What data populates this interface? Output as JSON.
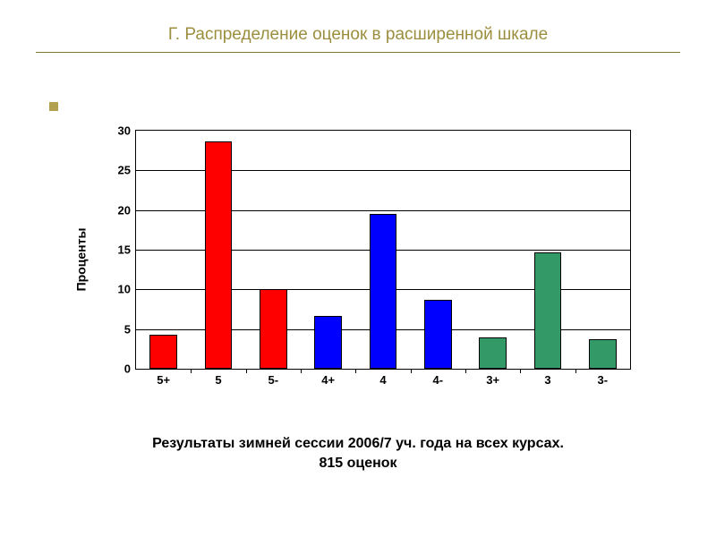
{
  "title": {
    "text": "Г. Распределение оценок в расширенной шкале",
    "color": "#9b8f3f",
    "fontsize": 19,
    "underline_color": "#807830"
  },
  "bullet": {
    "color": "#b0a050"
  },
  "chart": {
    "type": "bar",
    "ylabel": "Проценты",
    "label_fontsize": 14,
    "ylim": [
      0,
      30
    ],
    "ytick_step": 5,
    "yticks": [
      0,
      5,
      10,
      15,
      20,
      25,
      30
    ],
    "categories": [
      "5+",
      "5",
      "5-",
      "4+",
      "4",
      "4-",
      "3+",
      "3",
      "3-"
    ],
    "values": [
      4.3,
      28.6,
      10.0,
      6.6,
      19.5,
      8.7,
      4.0,
      14.7,
      3.7
    ],
    "bar_colors": [
      "#ff0000",
      "#ff0000",
      "#ff0000",
      "#0000ff",
      "#0000ff",
      "#0000ff",
      "#339966",
      "#339966",
      "#339966"
    ],
    "bar_width": 0.5,
    "background_color": "#ffffff",
    "grid_color": "#000000",
    "border_color": "#000000",
    "tick_fontsize": 13
  },
  "caption": {
    "line1": "Результаты зимней сессии 2006/7 уч. года на всех курсах.",
    "line2": "815 оценок",
    "fontsize": 16
  }
}
